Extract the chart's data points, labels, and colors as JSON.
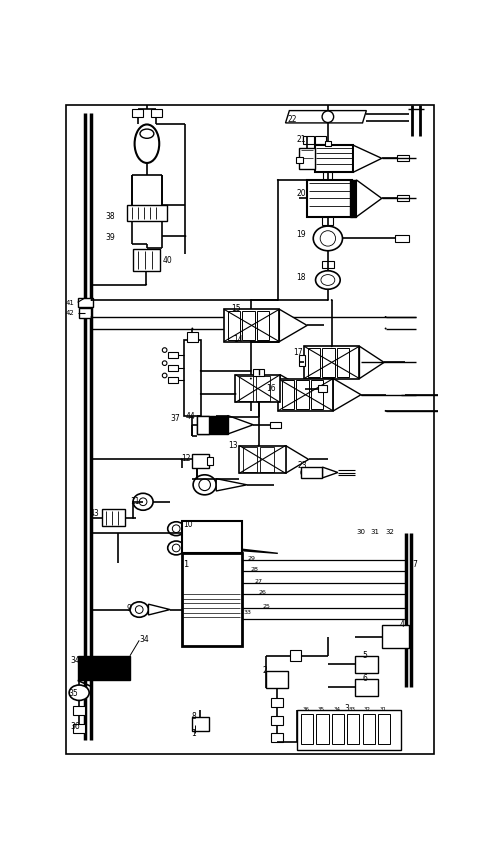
{
  "bg_color": "#ffffff",
  "lc": "#000000",
  "fig_width": 4.88,
  "fig_height": 8.53,
  "dpi": 100
}
